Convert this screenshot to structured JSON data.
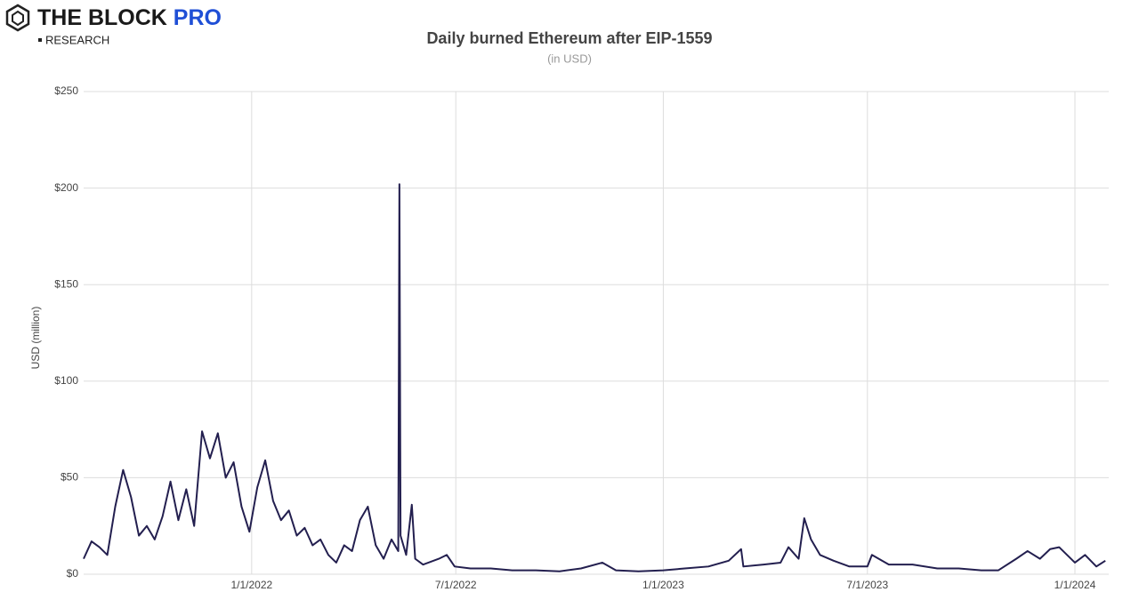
{
  "header": {
    "brand": "THE BLOCK",
    "brand_accent": "PRO",
    "sub": "RESEARCH"
  },
  "chart_data": {
    "type": "line",
    "title": "Daily burned Ethereum after EIP-1559",
    "subtitle": "(in USD)",
    "y_label": "USD (million)",
    "xlim": [
      "2021-08-05",
      "2024-01-31"
    ],
    "xticks": [
      {
        "value": "2022-01-01",
        "label": "1/1/2022"
      },
      {
        "value": "2022-07-01",
        "label": "7/1/2022"
      },
      {
        "value": "2023-01-01",
        "label": "1/1/2023"
      },
      {
        "value": "2023-07-01",
        "label": "7/1/2023"
      },
      {
        "value": "2024-01-01",
        "label": "1/1/2024"
      }
    ],
    "ylim": [
      0,
      250
    ],
    "yticks": [
      {
        "value": 0,
        "label": "$0"
      },
      {
        "value": 50,
        "label": "$50"
      },
      {
        "value": 100,
        "label": "$100"
      },
      {
        "value": 150,
        "label": "$150"
      },
      {
        "value": 200,
        "label": "$200"
      },
      {
        "value": 250,
        "label": "$250"
      }
    ],
    "grid": true,
    "series": [
      {
        "color": "#231f4f",
        "x": [
          "2021-08-05",
          "2021-08-12",
          "2021-08-19",
          "2021-08-26",
          "2021-09-02",
          "2021-09-09",
          "2021-09-16",
          "2021-09-23",
          "2021-09-30",
          "2021-10-07",
          "2021-10-14",
          "2021-10-21",
          "2021-10-28",
          "2021-11-04",
          "2021-11-11",
          "2021-11-18",
          "2021-11-25",
          "2021-12-02",
          "2021-12-09",
          "2021-12-16",
          "2021-12-23",
          "2021-12-30",
          "2022-01-06",
          "2022-01-13",
          "2022-01-20",
          "2022-01-27",
          "2022-02-03",
          "2022-02-10",
          "2022-02-17",
          "2022-02-24",
          "2022-03-03",
          "2022-03-10",
          "2022-03-17",
          "2022-03-24",
          "2022-03-31",
          "2022-04-07",
          "2022-04-14",
          "2022-04-21",
          "2022-04-28",
          "2022-05-05",
          "2022-05-11",
          "2022-05-12",
          "2022-05-13",
          "2022-05-18",
          "2022-05-23",
          "2022-05-26",
          "2022-06-02",
          "2022-06-16",
          "2022-06-23",
          "2022-06-30",
          "2022-07-14",
          "2022-08-01",
          "2022-08-20",
          "2022-09-10",
          "2022-10-01",
          "2022-10-20",
          "2022-11-08",
          "2022-11-20",
          "2022-12-10",
          "2023-01-01",
          "2023-01-20",
          "2023-02-10",
          "2023-02-28",
          "2023-03-11",
          "2023-03-13",
          "2023-03-31",
          "2023-04-15",
          "2023-04-22",
          "2023-05-01",
          "2023-05-06",
          "2023-05-12",
          "2023-05-20",
          "2023-06-01",
          "2023-06-15",
          "2023-07-01",
          "2023-07-05",
          "2023-07-20",
          "2023-08-10",
          "2023-09-01",
          "2023-09-20",
          "2023-10-10",
          "2023-10-25",
          "2023-11-10",
          "2023-11-20",
          "2023-12-01",
          "2023-12-10",
          "2023-12-18",
          "2024-01-01",
          "2024-01-10",
          "2024-01-20",
          "2024-01-28"
        ],
        "values": [
          8,
          17,
          14,
          10,
          35,
          54,
          40,
          20,
          25,
          18,
          30,
          48,
          28,
          44,
          25,
          74,
          60,
          73,
          50,
          58,
          35,
          22,
          45,
          59,
          38,
          28,
          33,
          20,
          24,
          15,
          18,
          10,
          6,
          15,
          12,
          28,
          35,
          15,
          8,
          18,
          12,
          202,
          20,
          10,
          36,
          8,
          5,
          8,
          10,
          4,
          3,
          3,
          2,
          2,
          1.5,
          3,
          6,
          2,
          1.5,
          2,
          3,
          4,
          7,
          13,
          4,
          5,
          6,
          14,
          8,
          29,
          18,
          10,
          7,
          4,
          4,
          10,
          5,
          5,
          3,
          3,
          2,
          2,
          8,
          12,
          8,
          13,
          14,
          6,
          10,
          4,
          7
        ]
      }
    ]
  }
}
